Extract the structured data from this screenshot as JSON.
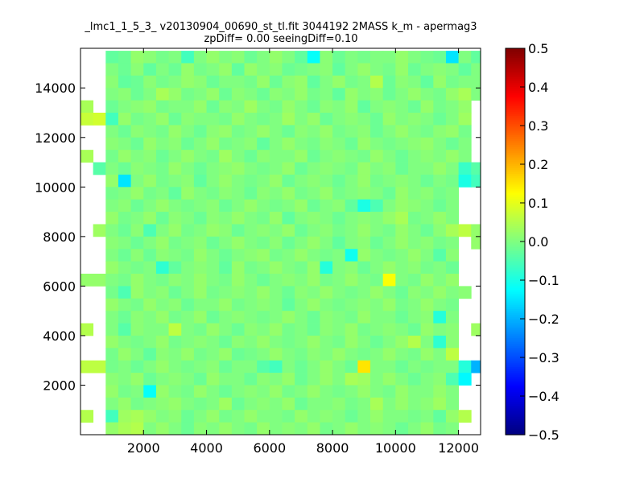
{
  "chart_data": {
    "type": "heatmap",
    "title": "_lmc1_1_5_3_ v20130904_00690_st_tl.fit 3044192 2MASS k_m - apermag3",
    "subtitle": "zpDiff= 0.00 seeingDiff=0.10",
    "xlabel": "",
    "ylabel": "",
    "xlim": [
      0,
      12700
    ],
    "ylim": [
      0,
      15600
    ],
    "xticks": [
      2000,
      4000,
      6000,
      8000,
      10000,
      12000
    ],
    "yticks": [
      2000,
      4000,
      6000,
      8000,
      10000,
      12000,
      14000
    ],
    "xtick_labels": [
      "2000",
      "4000",
      "6000",
      "8000",
      "10000",
      "12000"
    ],
    "ytick_labels": [
      "2000",
      "4000",
      "6000",
      "8000",
      "10000",
      "12000",
      "14000"
    ],
    "grid": false,
    "colormap": "jet",
    "color_range": [
      -0.5,
      0.5
    ],
    "colorbar_ticks": [
      0.5,
      0.4,
      0.3,
      0.2,
      0.1,
      0.0,
      -0.1,
      -0.2,
      -0.3,
      -0.4,
      -0.5
    ],
    "colorbar_labels": [
      "0.5",
      "0.4",
      "0.3",
      "0.2",
      "0.1",
      "0.0",
      "−0.1",
      "−0.2",
      "−0.3",
      "−0.4",
      "−0.5"
    ],
    "grid_cells": {
      "x_start": 0,
      "cell_width": 400,
      "n_cols": 32,
      "y_start": 0,
      "cell_height": 500,
      "n_rows": 32,
      "note_values": "values[r][c]: row 0 = highest y band (15500-15000) going down; null = empty",
      "values": [
        [
          null,
          null,
          null,
          null,
          null,
          null,
          null,
          null,
          null,
          null,
          null,
          null,
          null,
          null,
          null,
          null,
          null,
          null,
          null,
          null,
          null,
          null,
          null,
          null,
          null,
          null,
          null,
          null,
          null,
          null,
          null,
          null
        ],
        [
          null,
          null,
          -0.03,
          -0.02,
          0.02,
          0.01,
          -0.01,
          0.0,
          -0.06,
          0.0,
          0.02,
          0.0,
          0.01,
          -0.02,
          0.0,
          0.02,
          0.0,
          -0.03,
          -0.12,
          0.01,
          -0.02,
          0.0,
          -0.01,
          0.0,
          0.0,
          0.02,
          0.0,
          -0.01,
          -0.02,
          -0.15,
          0.0,
          -0.03
        ],
        [
          null,
          null,
          0.0,
          -0.02,
          0.01,
          -0.03,
          0.0,
          -0.02,
          0.02,
          -0.01,
          0.0,
          0.02,
          -0.03,
          0.02,
          0.0,
          0.01,
          -0.02,
          -0.01,
          0.0,
          0.01,
          -0.03,
          0.0,
          0.02,
          0.0,
          -0.01,
          0.02,
          -0.02,
          0.0,
          0.01,
          0.0,
          -0.03,
          0.0
        ],
        [
          null,
          null,
          0.01,
          -0.03,
          -0.02,
          0.01,
          -0.01,
          0.0,
          0.02,
          0.01,
          -0.02,
          0.0,
          0.0,
          -0.01,
          0.02,
          -0.02,
          0.01,
          0.02,
          -0.03,
          0.0,
          0.02,
          -0.01,
          0.0,
          0.05,
          -0.02,
          0.01,
          0.0,
          -0.03,
          0.02,
          -0.01,
          0.0,
          0.0
        ],
        [
          null,
          null,
          0.0,
          0.01,
          -0.02,
          0.0,
          0.04,
          0.02,
          -0.01,
          0.0,
          0.02,
          -0.02,
          0.01,
          0.0,
          -0.02,
          0.01,
          0.0,
          0.02,
          -0.01,
          0.0,
          -0.03,
          0.02,
          0.0,
          0.01,
          -0.02,
          0.0,
          0.02,
          0.0,
          -0.01,
          0.02,
          0.04,
          0.0
        ],
        [
          0.04,
          null,
          -0.02,
          0.0,
          0.01,
          0.02,
          -0.01,
          0.0,
          0.0,
          0.02,
          -0.02,
          0.01,
          0.0,
          0.03,
          0.0,
          -0.01,
          0.02,
          0.0,
          -0.02,
          0.01,
          0.0,
          0.02,
          -0.03,
          0.0,
          0.01,
          0.0,
          -0.02,
          0.02,
          -0.01,
          0.0,
          0.02,
          null
        ],
        [
          0.07,
          0.08,
          -0.06,
          0.02,
          -0.01,
          0.0,
          0.02,
          -0.02,
          0.01,
          0.0,
          0.0,
          -0.01,
          0.02,
          0.0,
          -0.01,
          0.0,
          0.03,
          0.0,
          0.02,
          -0.02,
          0.0,
          0.01,
          0.0,
          -0.02,
          0.02,
          0.0,
          0.01,
          0.0,
          -0.02,
          0.0,
          0.03,
          null
        ],
        [
          null,
          null,
          0.0,
          -0.02,
          0.01,
          0.0,
          -0.01,
          0.02,
          0.0,
          -0.02,
          0.01,
          0.02,
          -0.01,
          0.0,
          0.02,
          0.0,
          -0.02,
          0.01,
          0.0,
          0.02,
          -0.01,
          0.0,
          0.01,
          -0.02,
          0.0,
          0.02,
          0.0,
          -0.01,
          0.01,
          0.02,
          -0.01,
          null
        ],
        [
          null,
          null,
          0.01,
          0.0,
          -0.02,
          0.02,
          0.0,
          0.01,
          -0.02,
          0.0,
          0.02,
          -0.01,
          0.0,
          0.01,
          -0.03,
          0.0,
          0.02,
          0.0,
          -0.01,
          0.01,
          0.0,
          -0.02,
          0.02,
          0.0,
          -0.01,
          0.0,
          0.01,
          0.02,
          0.0,
          -0.02,
          0.0,
          null
        ],
        [
          0.04,
          null,
          -0.01,
          0.02,
          0.0,
          0.01,
          -0.02,
          0.0,
          0.02,
          0.0,
          -0.01,
          0.03,
          0.0,
          -0.02,
          0.01,
          0.0,
          0.0,
          0.02,
          -0.02,
          0.0,
          0.01,
          0.0,
          -0.01,
          0.02,
          0.0,
          -0.02,
          0.0,
          0.01,
          0.0,
          0.02,
          0.0,
          null
        ],
        [
          null,
          -0.04,
          0.0,
          -0.02,
          0.01,
          0.0,
          -0.01,
          0.02,
          0.0,
          -0.02,
          0.0,
          0.01,
          0.02,
          0.0,
          -0.01,
          0.0,
          0.02,
          -0.02,
          0.0,
          0.01,
          0.0,
          -0.01,
          0.02,
          0.0,
          0.01,
          -0.02,
          0.0,
          0.0,
          0.02,
          0.0,
          -0.07,
          -0.04
        ],
        [
          null,
          null,
          0.02,
          -0.15,
          0.0,
          0.02,
          -0.01,
          0.0,
          0.01,
          -0.03,
          0.0,
          0.02,
          0.0,
          -0.01,
          0.0,
          0.02,
          -0.02,
          0.0,
          0.01,
          0.0,
          -0.02,
          0.0,
          0.02,
          -0.01,
          0.0,
          0.01,
          0.0,
          -0.02,
          0.0,
          -0.01,
          -0.1,
          -0.06
        ],
        [
          null,
          null,
          -0.01,
          0.0,
          0.02,
          -0.01,
          0.0,
          -0.03,
          0.02,
          0.0,
          -0.01,
          0.01,
          0.0,
          -0.02,
          0.01,
          0.0,
          0.02,
          -0.01,
          0.0,
          0.02,
          -0.01,
          0.0,
          0.01,
          0.0,
          -0.02,
          0.02,
          0.0,
          0.01,
          -0.01,
          0.0,
          null,
          null
        ],
        [
          null,
          null,
          0.0,
          0.01,
          -0.02,
          0.0,
          0.02,
          0.0,
          -0.01,
          0.0,
          0.01,
          -0.02,
          0.0,
          0.02,
          0.0,
          -0.01,
          0.0,
          0.02,
          -0.02,
          0.0,
          0.01,
          -0.03,
          -0.1,
          -0.05,
          0.0,
          0.02,
          0.01,
          0.0,
          -0.02,
          0.0,
          null,
          null
        ],
        [
          null,
          null,
          0.02,
          -0.01,
          0.0,
          0.02,
          -0.02,
          0.01,
          0.0,
          -0.02,
          0.01,
          0.0,
          0.02,
          0.0,
          -0.01,
          0.02,
          -0.03,
          0.0,
          0.01,
          0.0,
          -0.02,
          0.0,
          0.01,
          0.0,
          0.02,
          0.04,
          -0.01,
          0.0,
          0.02,
          0.0,
          null,
          null
        ],
        [
          null,
          0.03,
          0.0,
          -0.02,
          0.01,
          -0.05,
          0.0,
          0.02,
          -0.01,
          0.0,
          0.02,
          0.01,
          -0.02,
          0.0,
          0.01,
          0.0,
          0.02,
          -0.02,
          0.0,
          0.01,
          -0.01,
          0.0,
          0.02,
          0.0,
          -0.01,
          0.02,
          0.0,
          -0.02,
          0.01,
          0.04,
          0.06,
          0.02
        ],
        [
          null,
          null,
          0.01,
          0.0,
          -0.02,
          0.0,
          0.02,
          -0.01,
          0.0,
          0.01,
          -0.02,
          0.0,
          0.02,
          0.0,
          -0.01,
          0.01,
          -0.02,
          0.0,
          0.02,
          0.0,
          -0.03,
          0.0,
          0.01,
          -0.02,
          0.0,
          0.02,
          0.0,
          0.01,
          -0.01,
          0.0,
          null,
          0.02
        ],
        [
          null,
          null,
          0.0,
          -0.02,
          0.01,
          -0.02,
          0.01,
          0.0,
          -0.01,
          0.02,
          0.0,
          -0.02,
          0.0,
          0.01,
          0.02,
          -0.01,
          0.0,
          0.02,
          0.0,
          -0.01,
          0.0,
          -0.11,
          0.02,
          0.0,
          -0.01,
          0.0,
          0.02,
          0.0,
          -0.04,
          0.01,
          null,
          null
        ],
        [
          null,
          null,
          0.02,
          0.0,
          -0.01,
          0.0,
          -0.08,
          -0.03,
          0.0,
          0.01,
          0.0,
          -0.03,
          0.02,
          -0.01,
          0.0,
          0.02,
          0.0,
          -0.01,
          0.02,
          -0.09,
          0.0,
          0.01,
          -0.02,
          0.0,
          0.02,
          0.0,
          0.01,
          -0.01,
          0.0,
          -0.02,
          null,
          null
        ],
        [
          0.02,
          0.02,
          0.0,
          -0.01,
          0.02,
          0.0,
          -0.01,
          0.01,
          0.0,
          0.02,
          0.0,
          -0.01,
          0.02,
          0.0,
          -0.02,
          0.0,
          0.01,
          0.0,
          0.02,
          -0.01,
          0.0,
          0.02,
          0.0,
          -0.01,
          0.12,
          0.0,
          -0.01,
          0.02,
          0.0,
          0.02,
          null,
          null
        ],
        [
          null,
          null,
          -0.01,
          -0.05,
          0.02,
          0.0,
          0.01,
          -0.02,
          0.0,
          0.02,
          -0.01,
          0.0,
          0.01,
          0.0,
          0.02,
          0.0,
          -0.02,
          0.01,
          0.0,
          0.02,
          0.0,
          -0.01,
          0.0,
          0.02,
          0.0,
          -0.02,
          0.01,
          0.0,
          0.02,
          0.0,
          0.01,
          null
        ],
        [
          null,
          null,
          0.02,
          0.0,
          -0.01,
          0.02,
          0.0,
          0.01,
          -0.02,
          0.0,
          0.0,
          0.02,
          -0.01,
          0.0,
          0.01,
          0.0,
          -0.03,
          0.0,
          0.02,
          0.0,
          -0.01,
          0.0,
          0.01,
          0.0,
          0.02,
          -0.01,
          0.0,
          0.02,
          0.0,
          -0.01,
          null,
          null
        ],
        [
          null,
          null,
          0.0,
          -0.02,
          0.01,
          0.0,
          0.02,
          -0.01,
          0.0,
          0.02,
          -0.02,
          0.0,
          0.01,
          0.0,
          -0.01,
          0.0,
          0.02,
          0.0,
          -0.02,
          0.01,
          0.0,
          -0.01,
          0.02,
          0.0,
          0.0,
          -0.02,
          0.0,
          0.01,
          -0.09,
          0.0,
          null,
          null
        ],
        [
          0.05,
          null,
          0.0,
          -0.04,
          0.01,
          0.0,
          0.0,
          0.06,
          0.0,
          -0.01,
          0.02,
          0.0,
          -0.02,
          0.01,
          0.0,
          0.02,
          -0.01,
          0.0,
          -0.02,
          0.01,
          0.0,
          0.02,
          -0.01,
          0.0,
          0.01,
          0.0,
          -0.02,
          0.02,
          0.0,
          0.01,
          null,
          0.03
        ],
        [
          null,
          null,
          0.02,
          0.0,
          -0.01,
          0.0,
          0.02,
          -0.01,
          0.0,
          0.01,
          0.0,
          -0.02,
          0.01,
          0.0,
          0.02,
          0.0,
          -0.01,
          0.0,
          0.02,
          0.0,
          -0.01,
          0.02,
          0.0,
          -0.02,
          0.0,
          0.02,
          0.05,
          0.0,
          -0.08,
          0.01,
          null,
          null
        ],
        [
          null,
          null,
          -0.01,
          0.02,
          0.0,
          -0.03,
          0.01,
          0.0,
          0.02,
          -0.01,
          0.0,
          0.02,
          -0.02,
          -0.01,
          0.0,
          0.02,
          0.0,
          -0.01,
          0.01,
          0.0,
          0.02,
          0.0,
          -0.01,
          0.0,
          0.02,
          0.0,
          -0.01,
          0.02,
          0.0,
          0.06,
          null,
          null
        ],
        [
          0.06,
          0.06,
          -0.01,
          0.0,
          -0.02,
          0.0,
          0.02,
          0.0,
          -0.01,
          0.0,
          0.01,
          -0.02,
          0.0,
          0.0,
          -0.04,
          -0.06,
          0.0,
          -0.02,
          0.0,
          0.02,
          0.0,
          -0.02,
          0.15,
          0.0,
          0.0,
          -0.02,
          0.0,
          -0.01,
          0.0,
          0.0,
          -0.09,
          -0.2
        ],
        [
          null,
          null,
          0.01,
          0.0,
          0.02,
          -0.02,
          0.0,
          0.01,
          0.0,
          -0.02,
          0.02,
          0.0,
          0.0,
          -0.02,
          0.01,
          0.0,
          0.02,
          -0.02,
          0.0,
          0.02,
          0.0,
          0.04,
          0.03,
          0.0,
          0.02,
          0.0,
          -0.02,
          0.0,
          0.01,
          -0.05,
          -0.13,
          null
        ],
        [
          null,
          null,
          0.02,
          -0.01,
          0.0,
          -0.12,
          0.02,
          0.0,
          -0.01,
          0.02,
          0.0,
          -0.02,
          0.0,
          0.01,
          0.0,
          0.02,
          -0.01,
          0.0,
          0.02,
          0.0,
          -0.01,
          0.0,
          0.02,
          0.0,
          -0.01,
          0.02,
          0.0,
          0.0,
          0.02,
          0.0,
          null,
          null
        ],
        [
          null,
          null,
          0.0,
          0.02,
          -0.01,
          0.0,
          0.01,
          0.02,
          0.0,
          -0.01,
          0.0,
          0.03,
          -0.02,
          0.0,
          0.01,
          0.0,
          0.02,
          -0.02,
          0.0,
          0.0,
          0.01,
          -0.01,
          0.0,
          0.04,
          0.0,
          0.02,
          0.0,
          0.01,
          0.03,
          0.0,
          null,
          null
        ],
        [
          0.05,
          null,
          -0.06,
          0.03,
          0.04,
          0.02,
          0.0,
          0.01,
          -0.02,
          0.0,
          0.02,
          -0.01,
          0.0,
          0.02,
          0.0,
          0.0,
          -0.01,
          0.02,
          0.0,
          0.01,
          0.0,
          -0.02,
          0.0,
          0.02,
          0.0,
          0.0,
          -0.01,
          0.0,
          -0.03,
          0.02,
          0.05,
          null
        ],
        [
          null,
          null,
          0.02,
          0.04,
          0.05,
          0.0,
          0.02,
          0.0,
          -0.02,
          0.01,
          0.0,
          0.02,
          0.0,
          -0.01,
          0.02,
          0.0,
          0.01,
          0.0,
          0.02,
          -0.01,
          0.0,
          0.02,
          0.0,
          0.01,
          0.0,
          -0.02,
          0.0,
          0.02,
          -0.01,
          0.0,
          null,
          null
        ]
      ]
    }
  },
  "colors": {
    "background": "#ffffff",
    "axes_edge": "#000000",
    "empty_cell": "#ffffff"
  }
}
